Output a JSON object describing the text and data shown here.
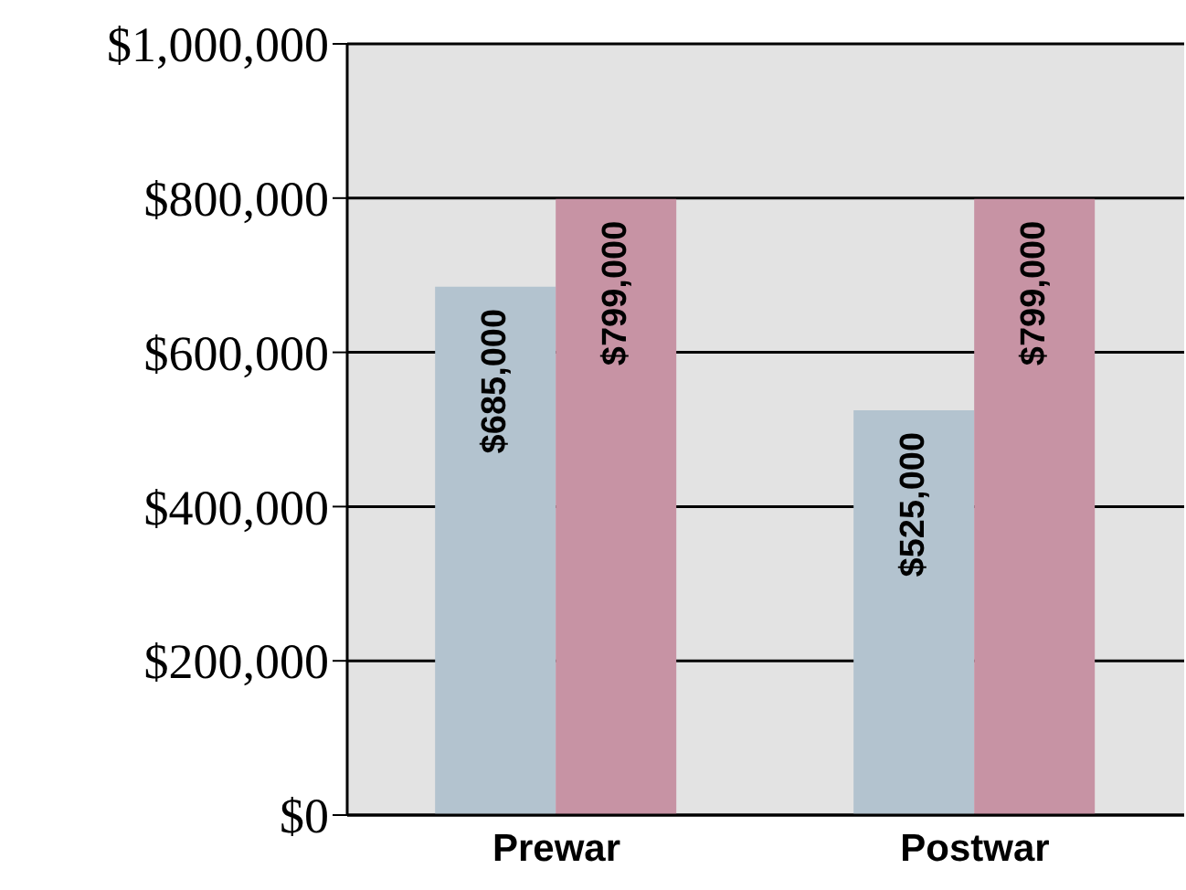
{
  "chart_data": {
    "type": "bar",
    "categories": [
      "Prewar",
      "Postwar"
    ],
    "series": [
      {
        "color": "#b3c3cf",
        "values": [
          685000,
          525000
        ],
        "value_labels": [
          "$685,000",
          "$525,000"
        ]
      },
      {
        "color": "#c793a4",
        "values": [
          799000,
          799000
        ],
        "value_labels": [
          "$799,000",
          "$799,000"
        ]
      }
    ],
    "ylim": [
      0,
      1000000
    ],
    "yticks": [
      {
        "value": 0,
        "label": "$0"
      },
      {
        "value": 200000,
        "label": "$200,000"
      },
      {
        "value": 400000,
        "label": "$400,000"
      },
      {
        "value": 600000,
        "label": "$600,000"
      },
      {
        "value": 800000,
        "label": "$800,000"
      },
      {
        "value": 1000000,
        "label": "$1,000,000"
      }
    ],
    "grid": "y",
    "legend": false
  }
}
